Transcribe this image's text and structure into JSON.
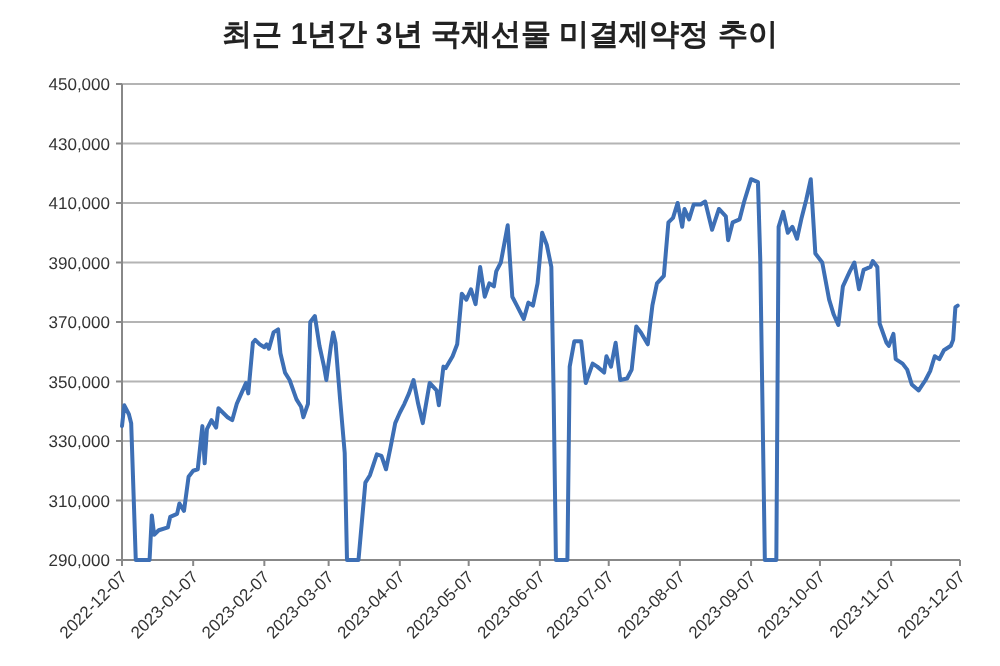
{
  "chart_data": {
    "type": "line",
    "title": "최근 1년간 3년 국채선물 미결제약정 추이",
    "x": [
      "2022-12-07",
      "2022-12-08",
      "2022-12-10",
      "2022-12-11",
      "2022-12-13",
      "2022-12-19",
      "2022-12-20",
      "2022-12-21",
      "2022-12-23",
      "2022-12-27",
      "2022-12-28",
      "2022-12-31",
      "2023-01-01",
      "2023-01-03",
      "2023-01-05",
      "2023-01-07",
      "2023-01-09",
      "2023-01-11",
      "2023-01-12",
      "2023-01-13",
      "2023-01-15",
      "2023-01-17",
      "2023-01-18",
      "2023-01-22",
      "2023-01-24",
      "2023-01-26",
      "2023-01-28",
      "2023-01-30",
      "2023-01-31",
      "2023-02-02",
      "2023-02-03",
      "2023-02-05",
      "2023-02-07",
      "2023-02-08",
      "2023-02-09",
      "2023-02-11",
      "2023-02-13",
      "2023-02-14",
      "2023-02-16",
      "2023-02-18",
      "2023-02-21",
      "2023-02-23",
      "2023-02-24",
      "2023-02-26",
      "2023-02-27",
      "2023-03-01",
      "2023-03-03",
      "2023-03-05",
      "2023-03-06",
      "2023-03-08",
      "2023-03-09",
      "2023-03-10",
      "2023-03-12",
      "2023-03-14",
      "2023-03-15",
      "2023-03-20",
      "2023-03-23",
      "2023-03-25",
      "2023-03-28",
      "2023-03-30",
      "2023-04-01",
      "2023-04-03",
      "2023-04-05",
      "2023-04-07",
      "2023-04-09",
      "2023-04-11",
      "2023-04-13",
      "2023-04-15",
      "2023-04-17",
      "2023-04-20",
      "2023-04-23",
      "2023-04-24",
      "2023-04-26",
      "2023-04-27",
      "2023-04-30",
      "2023-05-02",
      "2023-05-04",
      "2023-05-06",
      "2023-05-08",
      "2023-05-10",
      "2023-05-12",
      "2023-05-14",
      "2023-05-16",
      "2023-05-18",
      "2023-05-19",
      "2023-05-21",
      "2023-05-24",
      "2023-05-26",
      "2023-05-28",
      "2023-05-31",
      "2023-06-02",
      "2023-06-04",
      "2023-06-06",
      "2023-06-08",
      "2023-06-10",
      "2023-06-12",
      "2023-06-13",
      "2023-06-14",
      "2023-06-19",
      "2023-06-20",
      "2023-06-22",
      "2023-06-25",
      "2023-06-27",
      "2023-06-30",
      "2023-07-02",
      "2023-07-05",
      "2023-07-06",
      "2023-07-08",
      "2023-07-10",
      "2023-07-12",
      "2023-07-15",
      "2023-07-17",
      "2023-07-19",
      "2023-07-21",
      "2023-07-24",
      "2023-07-26",
      "2023-07-28",
      "2023-07-31",
      "2023-08-02",
      "2023-08-04",
      "2023-08-06",
      "2023-08-08",
      "2023-08-09",
      "2023-08-11",
      "2023-08-13",
      "2023-08-16",
      "2023-08-18",
      "2023-08-21",
      "2023-08-24",
      "2023-08-27",
      "2023-08-28",
      "2023-08-30",
      "2023-09-02",
      "2023-09-04",
      "2023-09-07",
      "2023-09-10",
      "2023-09-11",
      "2023-09-13",
      "2023-09-18",
      "2023-09-19",
      "2023-09-21",
      "2023-09-23",
      "2023-09-25",
      "2023-09-27",
      "2023-09-29",
      "2023-10-01",
      "2023-10-03",
      "2023-10-05",
      "2023-10-08",
      "2023-10-11",
      "2023-10-13",
      "2023-10-15",
      "2023-10-17",
      "2023-10-20",
      "2023-10-22",
      "2023-10-24",
      "2023-10-26",
      "2023-10-29",
      "2023-10-30",
      "2023-11-01",
      "2023-11-02",
      "2023-11-05",
      "2023-11-06",
      "2023-11-08",
      "2023-11-09",
      "2023-11-12",
      "2023-11-14",
      "2023-11-16",
      "2023-11-19",
      "2023-11-22",
      "2023-11-24",
      "2023-11-26",
      "2023-11-28",
      "2023-11-30",
      "2023-12-03",
      "2023-12-04",
      "2023-12-05",
      "2023-12-06"
    ],
    "series": [
      {
        "color": "#3d6fb5",
        "values": [
          335000,
          342000,
          339000,
          336000,
          290000,
          290000,
          305000,
          298500,
          300000,
          301000,
          304500,
          305500,
          309000,
          306500,
          318000,
          320000,
          320500,
          335000,
          322500,
          334000,
          337000,
          334500,
          341000,
          338000,
          337000,
          342500,
          346000,
          349500,
          346000,
          363000,
          364000,
          362500,
          361500,
          362500,
          361000,
          366500,
          367500,
          359500,
          353000,
          350500,
          344000,
          341500,
          338000,
          342500,
          370000,
          372000,
          362000,
          355000,
          350500,
          362000,
          366500,
          363000,
          344000,
          326000,
          290000,
          290000,
          316000,
          318500,
          325500,
          325000,
          320500,
          328000,
          336000,
          339500,
          342500,
          346000,
          350500,
          342500,
          336000,
          349500,
          347000,
          342000,
          355000,
          354500,
          358500,
          362500,
          379500,
          377500,
          381000,
          376000,
          388500,
          378500,
          383000,
          382000,
          387000,
          390000,
          402500,
          378500,
          375500,
          371000,
          376500,
          375500,
          383000,
          400000,
          396000,
          388500,
          346000,
          290000,
          290000,
          355000,
          363500,
          363500,
          349500,
          356000,
          355000,
          353000,
          358500,
          355000,
          363000,
          350500,
          351000,
          354000,
          368500,
          366500,
          362500,
          375500,
          383000,
          385500,
          403500,
          405000,
          410000,
          402000,
          408000,
          404500,
          409500,
          409500,
          410500,
          401000,
          408000,
          405500,
          397500,
          403500,
          404500,
          410500,
          418000,
          417000,
          391000,
          290000,
          290000,
          402000,
          407000,
          400000,
          402000,
          398000,
          405000,
          411000,
          418000,
          393000,
          390000,
          377500,
          372500,
          369000,
          382000,
          387000,
          390000,
          381000,
          387500,
          388500,
          390500,
          388500,
          369500,
          363000,
          362000,
          366000,
          357500,
          356000,
          354000,
          349000,
          347000,
          350500,
          353500,
          358500,
          357500,
          360500,
          362000,
          364000,
          375000,
          375500
        ]
      }
    ],
    "xlim": [
      "2022-12-07",
      "2023-12-07"
    ],
    "xticks": [
      {
        "value": "2022-12-07",
        "label": "2022-12-07"
      },
      {
        "value": "2023-01-07",
        "label": "2023-01-07"
      },
      {
        "value": "2023-02-07",
        "label": "2023-02-07"
      },
      {
        "value": "2023-03-07",
        "label": "2023-03-07"
      },
      {
        "value": "2023-04-07",
        "label": "2023-04-07"
      },
      {
        "value": "2023-05-07",
        "label": "2023-05-07"
      },
      {
        "value": "2023-06-07",
        "label": "2023-06-07"
      },
      {
        "value": "2023-07-07",
        "label": "2023-07-07"
      },
      {
        "value": "2023-08-07",
        "label": "2023-08-07"
      },
      {
        "value": "2023-09-07",
        "label": "2023-09-07"
      },
      {
        "value": "2023-10-07",
        "label": "2023-10-07"
      },
      {
        "value": "2023-11-07",
        "label": "2023-11-07"
      },
      {
        "value": "2023-12-07",
        "label": "2023-12-07"
      }
    ],
    "ylim": [
      290000,
      450000
    ],
    "yticks": [
      {
        "value": 290000,
        "label": "290,000"
      },
      {
        "value": 310000,
        "label": "310,000"
      },
      {
        "value": 330000,
        "label": "330,000"
      },
      {
        "value": 350000,
        "label": "350,000"
      },
      {
        "value": 370000,
        "label": "370,000"
      },
      {
        "value": 390000,
        "label": "390,000"
      },
      {
        "value": 410000,
        "label": "410,000"
      },
      {
        "value": 430000,
        "label": "430,000"
      },
      {
        "value": 450000,
        "label": "450,000"
      }
    ],
    "grid": "y",
    "marker": "none",
    "line_style": "solid"
  }
}
